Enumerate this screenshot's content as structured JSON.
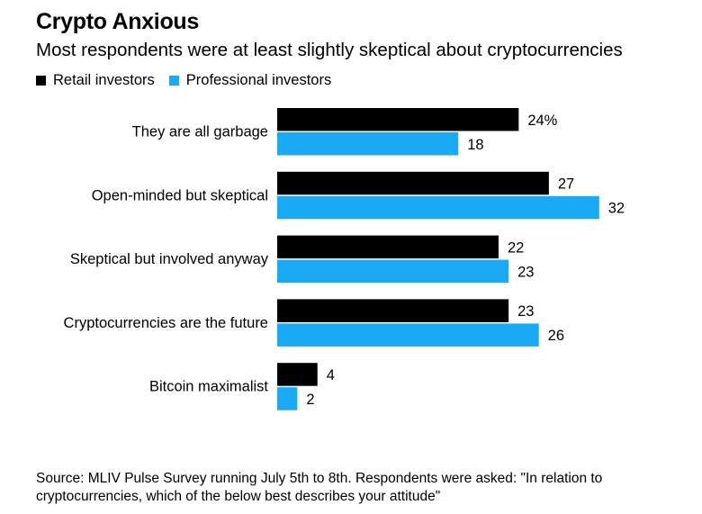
{
  "title": "Crypto Anxious",
  "subtitle": "Most respondents were at least slightly skeptical about cryptocurrencies",
  "source": "Source: MLIV Pulse Survey running July 5th to 8th. Respondents were asked: \"In relation to cryptocurrencies, which of the below best describes your attitude\"",
  "colors": {
    "retail": "#000000",
    "professional": "#1aa9f5"
  },
  "chart_data": {
    "type": "bar",
    "orientation": "horizontal",
    "categories": [
      "They are all garbage",
      "Open-minded but skeptical",
      "Skeptical but involved anyway",
      "Cryptocurrencies are the future",
      "Bitcoin maximalist"
    ],
    "series": [
      {
        "name": "Retail investors",
        "values": [
          24,
          27,
          22,
          23,
          4
        ],
        "labels": [
          "24%",
          "27",
          "22",
          "23",
          "4"
        ]
      },
      {
        "name": "Professional investors",
        "values": [
          18,
          32,
          23,
          26,
          2
        ],
        "labels": [
          "18",
          "32",
          "23",
          "26",
          "2"
        ]
      }
    ],
    "xlim": [
      0,
      32
    ],
    "grid": false,
    "legend": "top-left",
    "unit": "%"
  }
}
